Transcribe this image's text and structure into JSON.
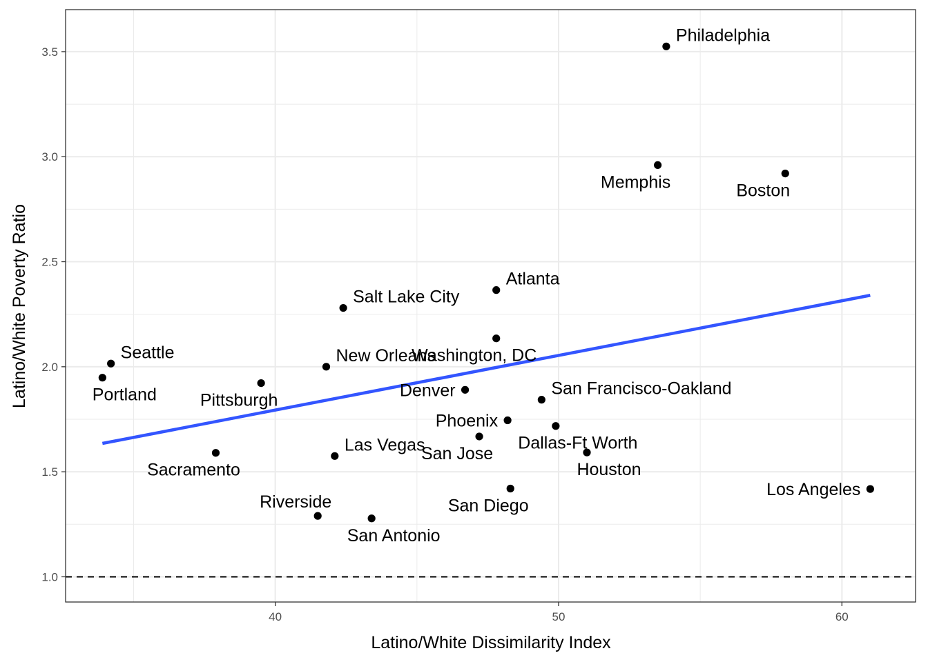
{
  "chart_data": {
    "type": "scatter",
    "title": "",
    "xlabel": "Latino/White Dissimilarity Index",
    "ylabel": "Latino/White Poverty Ratio",
    "xlim": [
      32.6,
      62.6
    ],
    "ylim": [
      0.88,
      3.7
    ],
    "x_ticks": [
      40,
      50,
      60
    ],
    "y_ticks": [
      1.0,
      1.5,
      2.0,
      2.5,
      3.0,
      3.5
    ],
    "x_tick_labels": [
      "40",
      "50",
      "60"
    ],
    "y_tick_labels": [
      "1.0",
      "1.5",
      "2.0",
      "2.5",
      "3.0",
      "3.5"
    ],
    "grid": true,
    "reference_line": {
      "y": 1.0,
      "style": "dashed",
      "color": "#000000"
    },
    "fit_line": {
      "type": "linear",
      "x": [
        33.9,
        61.0
      ],
      "y": [
        1.635,
        2.34
      ],
      "color": "#3355ff"
    },
    "point_color": "#000000",
    "points": [
      {
        "label": "Philadelphia",
        "x": 53.8,
        "y": 3.525,
        "label_pos": "upper-right"
      },
      {
        "label": "Memphis",
        "x": 53.5,
        "y": 2.96,
        "label_pos": "lower-left"
      },
      {
        "label": "Boston",
        "x": 58.0,
        "y": 2.92,
        "label_pos": "lower-left"
      },
      {
        "label": "Atlanta",
        "x": 47.8,
        "y": 2.365,
        "label_pos": "upper-right"
      },
      {
        "label": "Salt Lake City",
        "x": 42.4,
        "y": 2.28,
        "label_pos": "upper-right"
      },
      {
        "label": "Washington, DC",
        "x": 47.8,
        "y": 2.135,
        "label_pos": "lower-left"
      },
      {
        "label": "Seattle",
        "x": 34.2,
        "y": 2.015,
        "label_pos": "upper-right"
      },
      {
        "label": "New Orleans",
        "x": 41.8,
        "y": 2.0,
        "label_pos": "upper-right"
      },
      {
        "label": "Portland",
        "x": 33.9,
        "y": 1.948,
        "label_pos": "lower-right"
      },
      {
        "label": "Pittsburgh",
        "x": 39.5,
        "y": 1.922,
        "label_pos": "lower-left"
      },
      {
        "label": "Denver",
        "x": 46.7,
        "y": 1.89,
        "label_pos": "left"
      },
      {
        "label": "San Francisco-Oakland",
        "x": 49.4,
        "y": 1.843,
        "label_pos": "upper-right"
      },
      {
        "label": "Phoenix",
        "x": 48.2,
        "y": 1.745,
        "label_pos": "left"
      },
      {
        "label": "Dallas-Ft Worth",
        "x": 49.9,
        "y": 1.718,
        "label_pos": "lower-right"
      },
      {
        "label": "San Jose",
        "x": 47.2,
        "y": 1.668,
        "label_pos": "lower-left"
      },
      {
        "label": "Houston",
        "x": 51.0,
        "y": 1.592,
        "label_pos": "lower-right"
      },
      {
        "label": "Sacramento",
        "x": 37.9,
        "y": 1.59,
        "label_pos": "lower-left"
      },
      {
        "label": "Las Vegas",
        "x": 42.1,
        "y": 1.575,
        "label_pos": "upper-right"
      },
      {
        "label": "San Diego",
        "x": 48.3,
        "y": 1.42,
        "label_pos": "lower-left"
      },
      {
        "label": "Los Angeles",
        "x": 61.0,
        "y": 1.418,
        "label_pos": "left"
      },
      {
        "label": "Riverside",
        "x": 41.5,
        "y": 1.29,
        "label_pos": "upper-left"
      },
      {
        "label": "San Antonio",
        "x": 43.4,
        "y": 1.278,
        "label_pos": "lower-right"
      }
    ]
  }
}
